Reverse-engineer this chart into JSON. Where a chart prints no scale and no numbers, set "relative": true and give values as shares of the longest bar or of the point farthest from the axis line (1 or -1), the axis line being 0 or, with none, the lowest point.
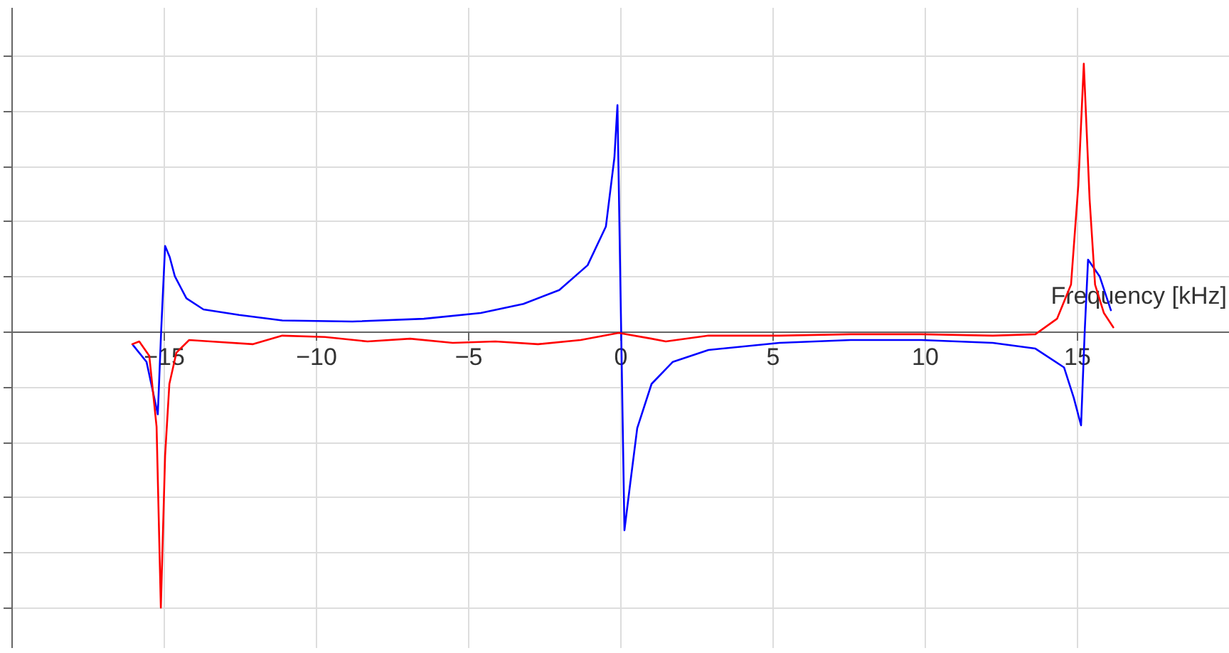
{
  "chart_data": {
    "type": "line",
    "xlabel": "Frequency [kHz]",
    "relative": true,
    "xlim": [
      -20,
      20
    ],
    "xticks": [
      -15,
      -10,
      -5,
      0,
      5,
      10,
      15
    ],
    "grid": true,
    "line_style": "solid",
    "series": [
      {
        "color": "#0000ff",
        "x": [
          -16.0,
          -15.56,
          -15.19,
          -15.08,
          -14.95,
          -14.8,
          -14.63,
          -14.25,
          -13.69,
          -12.52,
          -11.1,
          -8.8,
          -6.45,
          -4.58,
          -3.18,
          -2.0,
          -1.07,
          -0.47,
          -0.19,
          -0.09,
          0.14,
          0.33,
          0.56,
          1.03,
          1.73,
          2.9,
          5.23,
          7.57,
          9.9,
          12.24,
          13.64,
          14.58,
          14.9,
          15.14,
          15.26,
          15.37,
          15.75,
          16.12
        ],
        "values": [
          -0.05,
          -0.11,
          -0.3,
          0.0,
          0.31,
          0.27,
          0.2,
          0.12,
          0.08,
          0.06,
          0.04,
          0.036,
          0.046,
          0.067,
          0.1,
          0.15,
          0.24,
          0.38,
          0.63,
          0.82,
          -0.72,
          -0.55,
          -0.35,
          -0.19,
          -0.11,
          -0.067,
          -0.041,
          -0.031,
          -0.031,
          -0.041,
          -0.062,
          -0.13,
          -0.24,
          -0.34,
          0.0,
          0.26,
          0.2,
          0.077
        ]
      },
      {
        "color": "#ff0000",
        "x": [
          -16.03,
          -15.8,
          -15.47,
          -15.23,
          -15.09,
          -14.95,
          -14.81,
          -14.58,
          -14.16,
          -13.46,
          -12.06,
          -11.1,
          -9.7,
          -8.3,
          -6.9,
          -5.5,
          -4.1,
          -2.7,
          -1.3,
          -0.05,
          1.03,
          1.5,
          2.9,
          5.23,
          7.57,
          9.9,
          12.24,
          13.64,
          14.35,
          14.81,
          15.05,
          15.23,
          15.42,
          15.6,
          15.89,
          16.2
        ],
        "values": [
          -0.046,
          -0.036,
          -0.088,
          -0.345,
          -1.0,
          -0.45,
          -0.19,
          -0.077,
          -0.031,
          -0.036,
          -0.046,
          -0.015,
          -0.02,
          -0.036,
          -0.026,
          -0.041,
          -0.036,
          -0.046,
          -0.031,
          -0.005,
          -0.026,
          -0.036,
          -0.015,
          -0.015,
          -0.01,
          -0.01,
          -0.015,
          -0.01,
          0.046,
          0.17,
          0.53,
          0.97,
          0.48,
          0.17,
          0.067,
          0.015
        ]
      }
    ]
  }
}
